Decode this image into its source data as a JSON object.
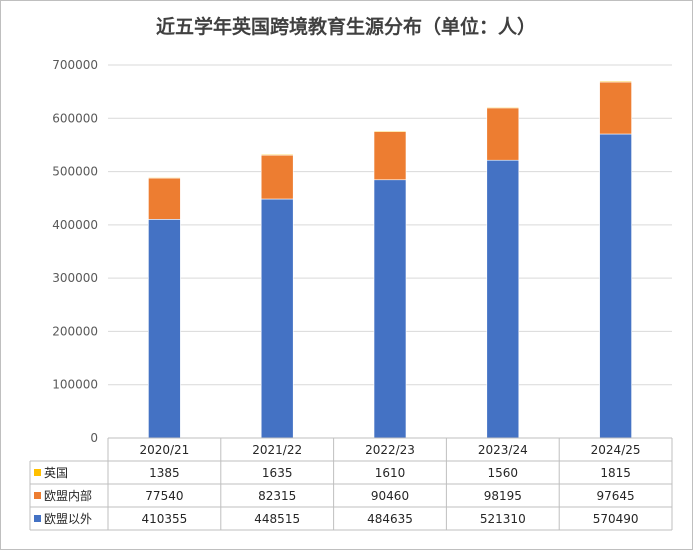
{
  "chart_data": {
    "type": "bar",
    "stacked": true,
    "title": "近五学年英国跨境教育生源分布（单位：人）",
    "categories": [
      "2020/21",
      "2021/22",
      "2022/23",
      "2023/24",
      "2024/25"
    ],
    "ylim": [
      0,
      700000
    ],
    "yticks": [
      "0",
      "100000",
      "200000",
      "300000",
      "400000",
      "500000",
      "600000",
      "700000"
    ],
    "grid": true,
    "legend": "data-table",
    "series": [
      {
        "name": "英国",
        "color": "#ffc000",
        "values": [
          1385,
          1635,
          1610,
          1560,
          1815
        ],
        "labels": [
          "1385",
          "1635",
          "1610",
          "1560",
          "1815"
        ]
      },
      {
        "name": "欧盟内部",
        "color": "#ed7d31",
        "values": [
          77540,
          82315,
          90460,
          98195,
          97645
        ],
        "labels": [
          "77540",
          "82315",
          "90460",
          "98195",
          "97645"
        ]
      },
      {
        "name": "欧盟以外",
        "color": "#4472c4",
        "values": [
          410355,
          448515,
          484635,
          521310,
          570490
        ],
        "labels": [
          "410355",
          "448515",
          "484635",
          "521310",
          "570490"
        ]
      }
    ]
  }
}
